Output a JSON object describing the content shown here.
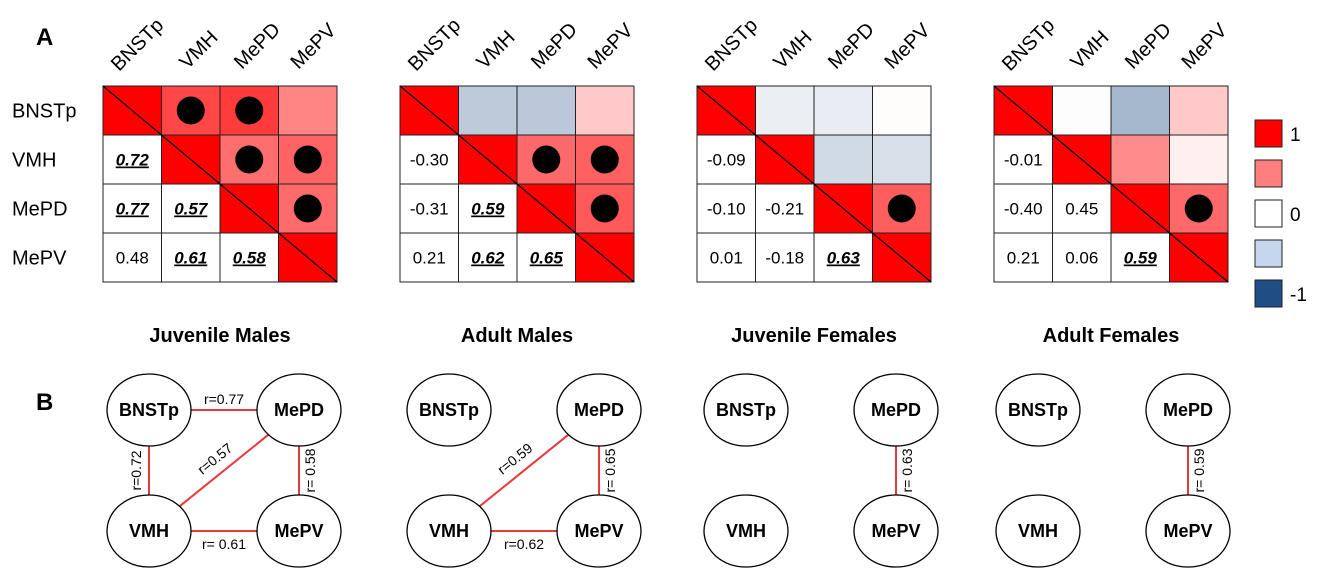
{
  "panel_labels": {
    "a": "A",
    "b": "B"
  },
  "regions": [
    "BNSTp",
    "VMH",
    "MePD",
    "MePV"
  ],
  "colors": {
    "strong_positive": "#ff0000",
    "pos_scale": "#ff0000",
    "neg_scale": "#1f4e85",
    "edge": "#e8393a",
    "grid": "#222222"
  },
  "legend": {
    "entries": [
      {
        "label": "1",
        "color": "#ff0000"
      },
      {
        "label": "",
        "color": "#ff7f7f"
      },
      {
        "label": "0",
        "color": "#ffffff"
      },
      {
        "label": "",
        "color": "#c5d6ee"
      },
      {
        "label": "-1",
        "color": "#1f4e85"
      }
    ]
  },
  "chart_data": [
    {
      "type": "heatmap",
      "title": "Juvenile Males",
      "labels": [
        "BNSTp",
        "VMH",
        "MePD",
        "MePV"
      ],
      "lower": [
        [
          1,
          0,
          0,
          0
        ],
        [
          0.72,
          1,
          0,
          0
        ],
        [
          0.77,
          0.57,
          1,
          0
        ],
        [
          0.48,
          0.61,
          0.58,
          1
        ]
      ],
      "lower_text": [
        [
          "",
          "",
          "",
          ""
        ],
        [
          "0.72",
          "",
          "",
          ""
        ],
        [
          "0.77",
          "0.57",
          "",
          ""
        ],
        [
          "0.48",
          "0.61",
          "0.58",
          ""
        ]
      ],
      "lower_sig": [
        [
          false,
          false,
          false,
          false
        ],
        [
          true,
          false,
          false,
          false
        ],
        [
          true,
          true,
          false,
          false
        ],
        [
          false,
          true,
          true,
          false
        ]
      ],
      "upper_sig_dots": [
        [
          0,
          1
        ],
        [
          0,
          2
        ],
        [
          1,
          2
        ],
        [
          1,
          3
        ],
        [
          2,
          3
        ]
      ],
      "network": {
        "edges": [
          {
            "from": "BNSTp",
            "to": "MePD",
            "label": "r=0.77"
          },
          {
            "from": "BNSTp",
            "to": "VMH",
            "label": "r=0.72"
          },
          {
            "from": "VMH",
            "to": "MePD",
            "label": "r=0.57"
          },
          {
            "from": "MePD",
            "to": "MePV",
            "label": "r= 0.58"
          },
          {
            "from": "VMH",
            "to": "MePV",
            "label": "r= 0.61"
          }
        ]
      }
    },
    {
      "type": "heatmap",
      "title": "Adult Males",
      "labels": [
        "BNSTp",
        "VMH",
        "MePD",
        "MePV"
      ],
      "lower": [
        [
          1,
          0,
          0,
          0
        ],
        [
          -0.3,
          1,
          0,
          0
        ],
        [
          -0.31,
          0.59,
          1,
          0
        ],
        [
          0.21,
          0.62,
          0.65,
          1
        ]
      ],
      "lower_text": [
        [
          "",
          "",
          "",
          ""
        ],
        [
          "-0.30",
          "",
          "",
          ""
        ],
        [
          "-0.31",
          "0.59",
          "",
          ""
        ],
        [
          "0.21",
          "0.62",
          "0.65",
          ""
        ]
      ],
      "lower_sig": [
        [
          false,
          false,
          false,
          false
        ],
        [
          false,
          false,
          false,
          false
        ],
        [
          false,
          true,
          false,
          false
        ],
        [
          false,
          true,
          true,
          false
        ]
      ],
      "upper_sig_dots": [
        [
          1,
          2
        ],
        [
          1,
          3
        ],
        [
          2,
          3
        ]
      ],
      "network": {
        "edges": [
          {
            "from": "VMH",
            "to": "MePD",
            "label": "r=0.59"
          },
          {
            "from": "MePD",
            "to": "MePV",
            "label": "r= 0.65"
          },
          {
            "from": "VMH",
            "to": "MePV",
            "label": "r=0.62"
          }
        ]
      }
    },
    {
      "type": "heatmap",
      "title": "Juvenile Females",
      "labels": [
        "BNSTp",
        "VMH",
        "MePD",
        "MePV"
      ],
      "lower": [
        [
          1,
          0,
          0,
          0
        ],
        [
          -0.09,
          1,
          0,
          0
        ],
        [
          -0.1,
          -0.21,
          1,
          0
        ],
        [
          0.01,
          -0.18,
          0.63,
          1
        ]
      ],
      "lower_text": [
        [
          "",
          "",
          "",
          ""
        ],
        [
          "-0.09",
          "",
          "",
          ""
        ],
        [
          "-0.10",
          "-0.21",
          "",
          ""
        ],
        [
          "0.01",
          "-0.18",
          "0.63",
          ""
        ]
      ],
      "lower_sig": [
        [
          false,
          false,
          false,
          false
        ],
        [
          false,
          false,
          false,
          false
        ],
        [
          false,
          false,
          false,
          false
        ],
        [
          false,
          false,
          true,
          false
        ]
      ],
      "upper_sig_dots": [
        [
          2,
          3
        ]
      ],
      "network": {
        "edges": [
          {
            "from": "MePD",
            "to": "MePV",
            "label": "r= 0.63"
          }
        ]
      }
    },
    {
      "type": "heatmap",
      "title": "Adult Females",
      "labels": [
        "BNSTp",
        "VMH",
        "MePD",
        "MePV"
      ],
      "lower": [
        [
          1,
          0,
          0,
          0
        ],
        [
          -0.01,
          1,
          0,
          0
        ],
        [
          -0.4,
          0.45,
          1,
          0
        ],
        [
          0.21,
          0.06,
          0.59,
          1
        ]
      ],
      "lower_text": [
        [
          "",
          "",
          "",
          ""
        ],
        [
          "-0.01",
          "",
          "",
          ""
        ],
        [
          "-0.40",
          "0.45",
          "",
          ""
        ],
        [
          "0.21",
          "0.06",
          "0.59",
          ""
        ]
      ],
      "lower_sig": [
        [
          false,
          false,
          false,
          false
        ],
        [
          false,
          false,
          false,
          false
        ],
        [
          false,
          false,
          false,
          false
        ],
        [
          false,
          false,
          true,
          false
        ]
      ],
      "upper_sig_dots": [
        [
          2,
          3
        ]
      ],
      "network": {
        "edges": [
          {
            "from": "MePD",
            "to": "MePV",
            "label": "r= 0.59"
          }
        ]
      }
    }
  ]
}
